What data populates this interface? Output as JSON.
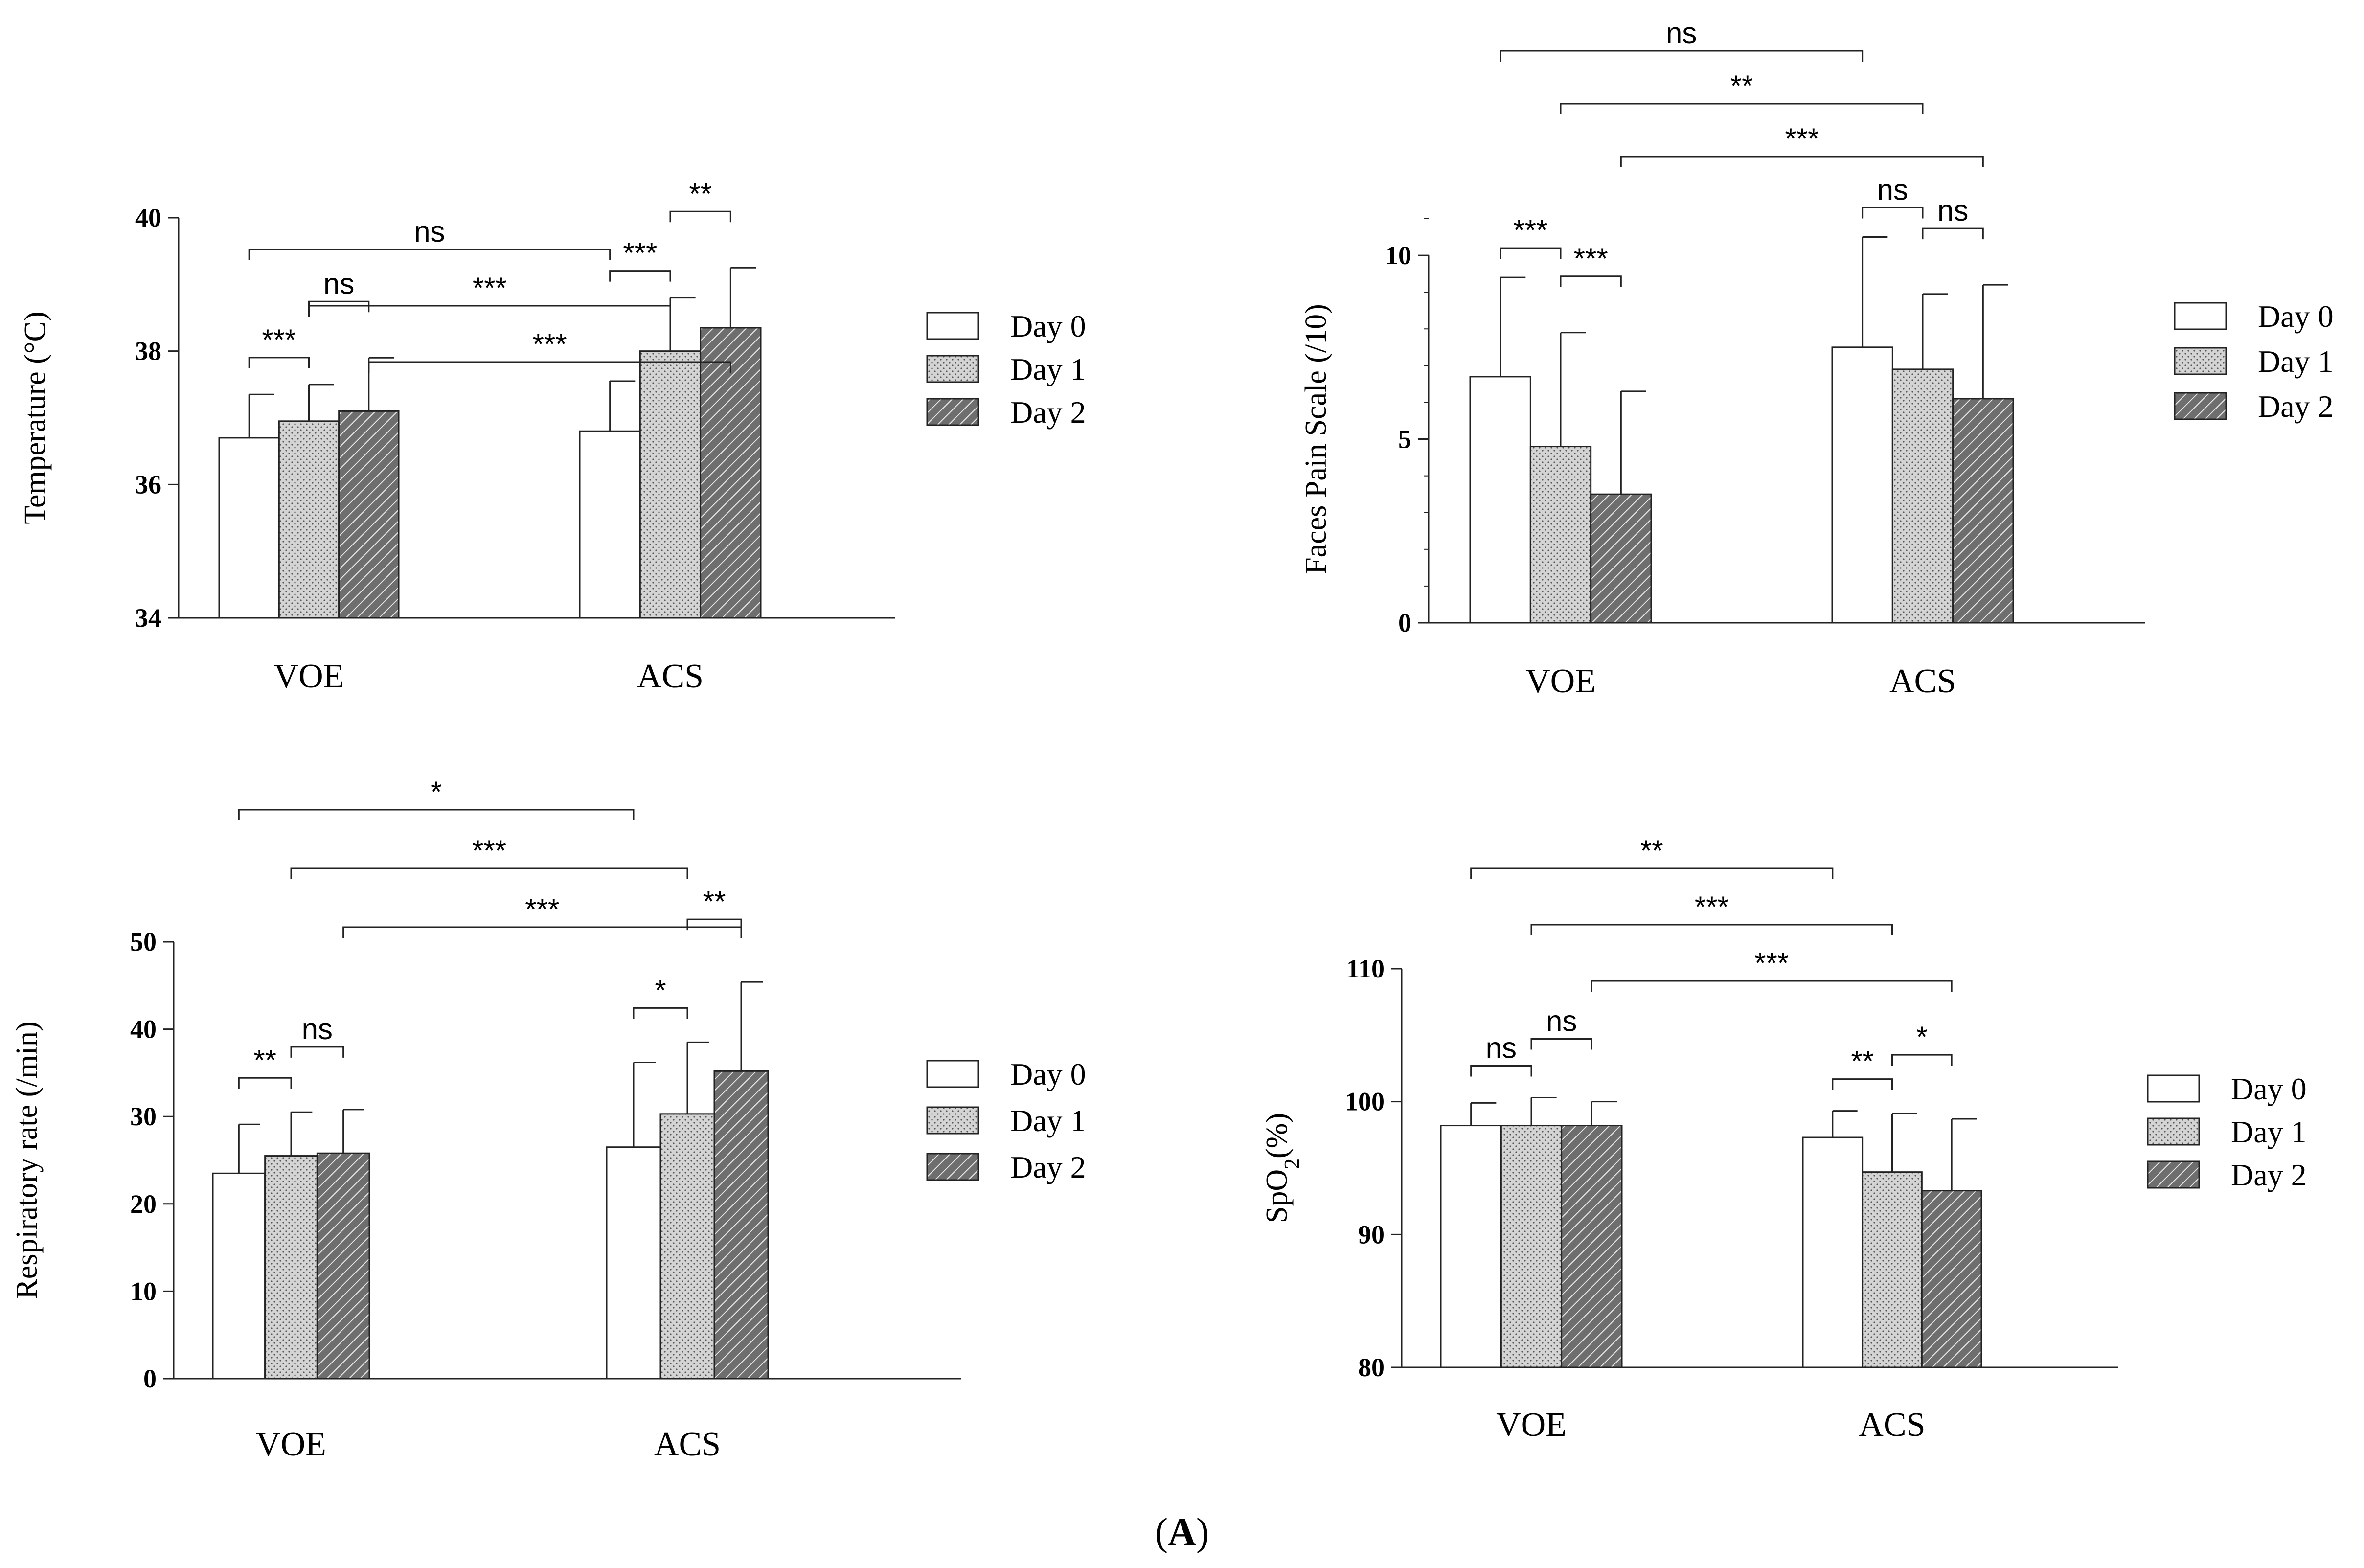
{
  "figure_label": {
    "open": "(",
    "letter": "A",
    "close": ")"
  },
  "colors": {
    "day0": "#ffffff",
    "day1": "#d2d2d2",
    "day2": "#6e6e6e",
    "stroke": "#222222"
  },
  "chart_data": [
    {
      "type": "bar",
      "ylabel": "Temperature (°C)",
      "ylabel_sub": "",
      "ylabel_after": "",
      "ylim": [
        34,
        40
      ],
      "yticks": [
        34,
        36,
        38,
        40
      ],
      "minor_step": 0,
      "categories": [
        "VOE",
        "ACS"
      ],
      "series": [
        {
          "name": "Day 0",
          "values": [
            36.7,
            36.8
          ],
          "errors": [
            0.65,
            0.75
          ]
        },
        {
          "name": "Day 1",
          "values": [
            36.95,
            38.0
          ],
          "errors": [
            0.55,
            0.8
          ]
        },
        {
          "name": "Day 2",
          "values": [
            37.1,
            38.35
          ],
          "errors": [
            0.8,
            0.9
          ]
        }
      ],
      "significance": [
        {
          "from": [
            0,
            0
          ],
          "to": [
            0,
            1
          ],
          "label": "***"
        },
        {
          "from": [
            0,
            1
          ],
          "to": [
            0,
            2
          ],
          "label": "ns"
        },
        {
          "from": [
            1,
            0
          ],
          "to": [
            1,
            1
          ],
          "label": "***"
        },
        {
          "from": [
            1,
            1
          ],
          "to": [
            1,
            2
          ],
          "label": "**"
        },
        {
          "from": [
            0,
            0
          ],
          "to": [
            1,
            0
          ],
          "label": "ns"
        },
        {
          "from": [
            0,
            1
          ],
          "to": [
            1,
            1
          ],
          "label": "***"
        },
        {
          "from": [
            0,
            2
          ],
          "to": [
            1,
            2
          ],
          "label": "***"
        }
      ]
    },
    {
      "type": "bar",
      "ylabel": "Faces Pain Scale  (/10)",
      "ylabel_sub": "",
      "ylabel_after": "",
      "ylim": [
        0,
        11
      ],
      "yticks": [
        0,
        5,
        10
      ],
      "minor_step": 1,
      "categories": [
        "VOE",
        "ACS"
      ],
      "series": [
        {
          "name": "Day 0",
          "values": [
            6.7,
            7.5
          ],
          "errors": [
            2.7,
            3.0
          ]
        },
        {
          "name": "Day 1",
          "values": [
            4.8,
            6.9
          ],
          "errors": [
            3.1,
            2.05
          ]
        },
        {
          "name": "Day 2",
          "values": [
            3.5,
            6.1
          ],
          "errors": [
            2.8,
            3.1
          ]
        }
      ],
      "significance": [
        {
          "from": [
            0,
            0
          ],
          "to": [
            0,
            1
          ],
          "label": "***"
        },
        {
          "from": [
            0,
            1
          ],
          "to": [
            0,
            2
          ],
          "label": "***"
        },
        {
          "from": [
            1,
            0
          ],
          "to": [
            1,
            1
          ],
          "label": "ns"
        },
        {
          "from": [
            1,
            1
          ],
          "to": [
            1,
            2
          ],
          "label": "ns"
        },
        {
          "from": [
            0,
            0
          ],
          "to": [
            1,
            0
          ],
          "label": "ns"
        },
        {
          "from": [
            0,
            1
          ],
          "to": [
            1,
            1
          ],
          "label": "**"
        },
        {
          "from": [
            0,
            2
          ],
          "to": [
            1,
            2
          ],
          "label": "***"
        }
      ]
    },
    {
      "type": "bar",
      "ylabel": "Respiratory rate (/min)",
      "ylabel_sub": "",
      "ylabel_after": "",
      "ylim": [
        0,
        50
      ],
      "yticks": [
        0,
        10,
        20,
        30,
        40,
        50
      ],
      "minor_step": 0,
      "categories": [
        "VOE",
        "ACS"
      ],
      "series": [
        {
          "name": "Day 0",
          "values": [
            23.5,
            26.5
          ],
          "errors": [
            5.6,
            9.7
          ]
        },
        {
          "name": "Day 1",
          "values": [
            25.5,
            30.3
          ],
          "errors": [
            5.0,
            8.2
          ]
        },
        {
          "name": "Day 2",
          "values": [
            25.8,
            35.2
          ],
          "errors": [
            5.0,
            10.2
          ]
        }
      ],
      "significance": [
        {
          "from": [
            0,
            0
          ],
          "to": [
            0,
            1
          ],
          "label": "**"
        },
        {
          "from": [
            0,
            1
          ],
          "to": [
            0,
            2
          ],
          "label": "ns"
        },
        {
          "from": [
            1,
            0
          ],
          "to": [
            1,
            1
          ],
          "label": "*"
        },
        {
          "from": [
            1,
            1
          ],
          "to": [
            1,
            2
          ],
          "label": "**"
        },
        {
          "from": [
            0,
            0
          ],
          "to": [
            1,
            0
          ],
          "label": "*"
        },
        {
          "from": [
            0,
            1
          ],
          "to": [
            1,
            1
          ],
          "label": "***"
        },
        {
          "from": [
            0,
            2
          ],
          "to": [
            1,
            2
          ],
          "label": "***"
        }
      ]
    },
    {
      "type": "bar",
      "ylabel": "SpO",
      "ylabel_sub": "2",
      "ylabel_after": "(%)",
      "ylim": [
        80,
        110
      ],
      "yticks": [
        80,
        90,
        100,
        110
      ],
      "minor_step": 0,
      "categories": [
        "VOE",
        "ACS"
      ],
      "series": [
        {
          "name": "Day 0",
          "values": [
            98.2,
            97.3
          ],
          "errors": [
            1.7,
            2.0
          ]
        },
        {
          "name": "Day 1",
          "values": [
            98.2,
            94.7
          ],
          "errors": [
            2.1,
            4.4
          ]
        },
        {
          "name": "Day 2",
          "values": [
            98.2,
            93.3
          ],
          "errors": [
            1.8,
            5.4
          ]
        }
      ],
      "significance": [
        {
          "from": [
            0,
            0
          ],
          "to": [
            0,
            1
          ],
          "label": "ns"
        },
        {
          "from": [
            0,
            1
          ],
          "to": [
            0,
            2
          ],
          "label": "ns"
        },
        {
          "from": [
            1,
            0
          ],
          "to": [
            1,
            1
          ],
          "label": "**"
        },
        {
          "from": [
            1,
            1
          ],
          "to": [
            1,
            2
          ],
          "label": "*"
        },
        {
          "from": [
            0,
            0
          ],
          "to": [
            1,
            0
          ],
          "label": "**"
        },
        {
          "from": [
            0,
            1
          ],
          "to": [
            1,
            1
          ],
          "label": "***"
        },
        {
          "from": [
            0,
            2
          ],
          "to": [
            1,
            2
          ],
          "label": "***"
        }
      ]
    }
  ]
}
